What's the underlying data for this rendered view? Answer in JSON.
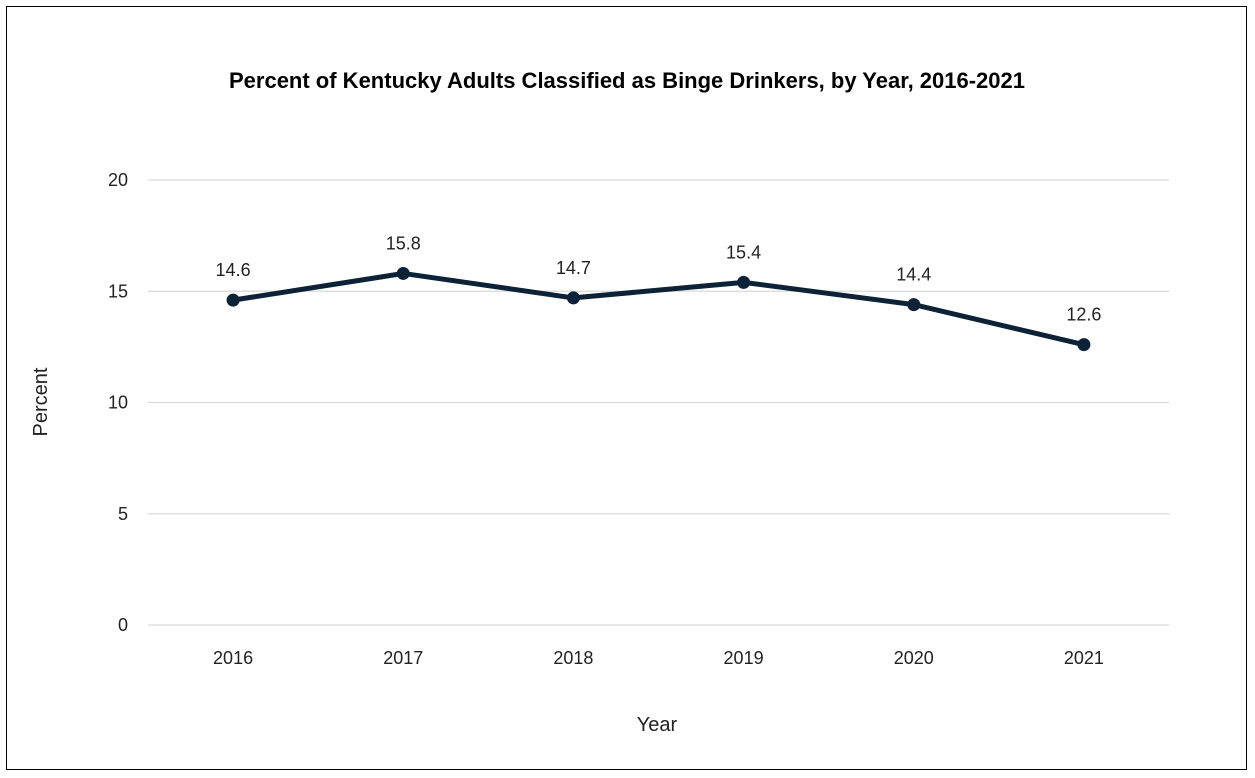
{
  "chart_data": {
    "type": "line",
    "title": "Percent of Kentucky Adults Classified as Binge Drinkers, by Year, 2016-2021",
    "xlabel": "Year",
    "ylabel": "Percent",
    "categories": [
      "2016",
      "2017",
      "2018",
      "2019",
      "2020",
      "2021"
    ],
    "series": [
      {
        "values": [
          14.6,
          15.8,
          14.7,
          15.4,
          14.4,
          12.6
        ],
        "color": "#0d2137"
      }
    ],
    "data_labels": [
      "14.6",
      "15.8",
      "14.7",
      "15.4",
      "14.4",
      "12.6"
    ],
    "ylim": [
      0,
      20
    ],
    "yticks": [
      0,
      5,
      10,
      15,
      20
    ],
    "grid": true,
    "gridline_color": "#d9d9d9",
    "legend": "none"
  }
}
